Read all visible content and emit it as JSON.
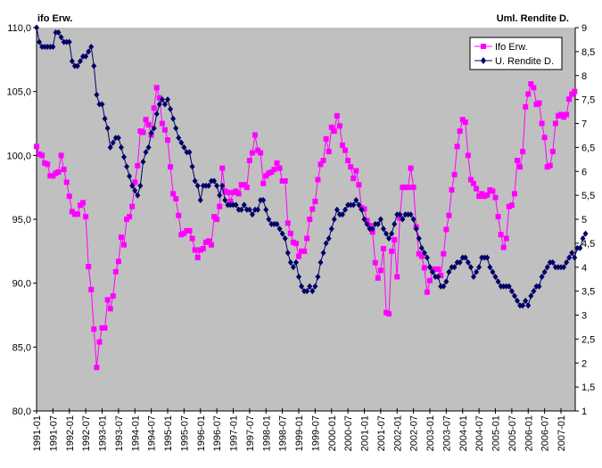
{
  "chart_data": {
    "type": "line",
    "left_axis_title": "ifo Erw.",
    "right_axis_title": "Uml. Rendite D.",
    "x_start": "1991-01",
    "x_frequency": "monthly",
    "x_tick_labels": [
      "1991-01",
      "1991-07",
      "1992-01",
      "1992-07",
      "1993-01",
      "1993-07",
      "1994-01",
      "1994-07",
      "1995-01",
      "1995-07",
      "1996-01",
      "1996-07",
      "1997-01",
      "1997-07",
      "1998-01",
      "1998-07",
      "1999-01",
      "1999-07",
      "2000-01",
      "2000-07",
      "2001-01",
      "2001-07",
      "2002-01",
      "2002-07",
      "2003-01",
      "2003-07",
      "2004-01",
      "2004-07",
      "2005-01",
      "2005-07",
      "2006-01",
      "2006-07",
      "2007-01"
    ],
    "y_left": {
      "range": [
        80,
        110
      ],
      "ticks": [
        "80,0",
        "85,0",
        "90,0",
        "95,0",
        "100,0",
        "105,0",
        "110,0"
      ]
    },
    "y_right": {
      "range": [
        1,
        9
      ],
      "ticks": [
        "1",
        "1,5",
        "2",
        "2,5",
        "3",
        "3,5",
        "4",
        "4,5",
        "5",
        "5,5",
        "6",
        "6,5",
        "7",
        "7,5",
        "8",
        "8,5",
        "9"
      ]
    },
    "plot_background": "#c0c0c0",
    "grid": false,
    "legend": "top-right",
    "series": [
      {
        "name": "Ifo Erw.",
        "axis": "left",
        "color": "#ff00ff",
        "marker": "square",
        "values": [
          100.7,
          100.1,
          100.0,
          99.4,
          99.3,
          98.4,
          98.4,
          98.6,
          98.7,
          100.0,
          98.9,
          97.9,
          96.8,
          95.6,
          95.4,
          95.4,
          96.1,
          96.3,
          95.2,
          91.3,
          89.5,
          86.4,
          83.4,
          85.4,
          86.5,
          86.5,
          88.7,
          88.0,
          89.0,
          90.9,
          91.7,
          93.6,
          93.0,
          95.0,
          95.2,
          96.0,
          97.9,
          99.2,
          101.9,
          101.8,
          102.8,
          102.4,
          101.6,
          103.7,
          105.3,
          104.5,
          102.5,
          102.0,
          101.2,
          99.1,
          97.0,
          96.6,
          95.3,
          93.8,
          93.9,
          94.1,
          94.1,
          93.5,
          92.6,
          92.0,
          92.6,
          92.7,
          93.2,
          93.3,
          93.0,
          95.2,
          95.0,
          96.0,
          99.0,
          97.2,
          97.1,
          96.4,
          97.1,
          97.2,
          97.0,
          97.7,
          97.7,
          97.5,
          99.6,
          100.2,
          101.6,
          100.4,
          100.2,
          97.8,
          98.4,
          98.6,
          98.7,
          98.9,
          99.4,
          99.0,
          98.0,
          98.0,
          94.7,
          93.9,
          93.2,
          93.1,
          92.1,
          92.5,
          92.5,
          93.5,
          95.0,
          95.8,
          96.4,
          98.1,
          99.3,
          99.6,
          101.3,
          100.3,
          102.2,
          101.9,
          103.1,
          102.3,
          100.8,
          100.4,
          99.6,
          99.1,
          98.2,
          98.8,
          97.7,
          95.9,
          95.8,
          94.9,
          94.5,
          94.0,
          91.6,
          90.4,
          91.0,
          92.7,
          87.7,
          87.6,
          92.5,
          93.4,
          90.5,
          95.1,
          97.5,
          97.5,
          97.5,
          99.0,
          97.5,
          94.4,
          92.3,
          92.1,
          91.2,
          89.3,
          90.2,
          91.0,
          91.1,
          91.1,
          90.6,
          92.3,
          94.2,
          95.3,
          97.3,
          98.5,
          100.7,
          101.9,
          102.8,
          102.6,
          100.0,
          98.1,
          97.8,
          97.4,
          96.8,
          97.0,
          96.8,
          96.9,
          97.3,
          97.2,
          96.7,
          95.2,
          93.8,
          92.8,
          93.5,
          96.0,
          96.1,
          97.0,
          99.6,
          99.1,
          100.3,
          103.8,
          104.8,
          105.6,
          105.3,
          104.0,
          104.1,
          102.5,
          101.4,
          99.1,
          99.2,
          100.3,
          102.5,
          103.1,
          103.2,
          103.0,
          103.2,
          104.4,
          104.8,
          105.0
        ]
      },
      {
        "name": "U. Rendite D.",
        "axis": "right",
        "color": "#000066",
        "marker": "diamond",
        "values": [
          9.0,
          8.7,
          8.6,
          8.6,
          8.6,
          8.6,
          8.6,
          8.9,
          8.9,
          8.8,
          8.7,
          8.7,
          8.7,
          8.3,
          8.2,
          8.2,
          8.3,
          8.4,
          8.4,
          8.5,
          8.6,
          8.2,
          7.6,
          7.4,
          7.4,
          7.1,
          6.9,
          6.5,
          6.6,
          6.7,
          6.7,
          6.5,
          6.3,
          6.1,
          5.9,
          5.7,
          5.6,
          5.5,
          5.7,
          6.2,
          6.4,
          6.5,
          6.8,
          6.9,
          7.2,
          7.4,
          7.5,
          7.4,
          7.5,
          7.3,
          7.1,
          6.9,
          6.7,
          6.6,
          6.5,
          6.4,
          6.4,
          6.1,
          5.8,
          5.7,
          5.4,
          5.7,
          5.7,
          5.7,
          5.8,
          5.8,
          5.7,
          5.5,
          5.7,
          5.4,
          5.3,
          5.3,
          5.3,
          5.3,
          5.2,
          5.2,
          5.3,
          5.2,
          5.2,
          5.1,
          5.2,
          5.2,
          5.4,
          5.4,
          5.2,
          5.0,
          4.9,
          4.9,
          4.9,
          4.8,
          4.7,
          4.6,
          4.3,
          4.1,
          4.0,
          4.1,
          3.8,
          3.6,
          3.5,
          3.5,
          3.6,
          3.5,
          3.6,
          3.8,
          4.1,
          4.3,
          4.5,
          4.6,
          4.8,
          5.0,
          5.2,
          5.1,
          5.1,
          5.2,
          5.3,
          5.3,
          5.3,
          5.4,
          5.3,
          5.2,
          5.0,
          4.9,
          4.8,
          4.8,
          4.9,
          4.9,
          5.0,
          4.8,
          4.7,
          4.6,
          4.7,
          4.9,
          5.1,
          5.1,
          5.0,
          5.1,
          5.1,
          5.1,
          5.0,
          4.8,
          4.6,
          4.4,
          4.3,
          4.2,
          4.0,
          3.9,
          3.8,
          3.8,
          3.6,
          3.6,
          3.7,
          3.9,
          4.0,
          4.0,
          4.1,
          4.1,
          4.2,
          4.2,
          4.1,
          4.0,
          3.8,
          3.9,
          4.0,
          4.2,
          4.2,
          4.2,
          4.0,
          3.9,
          3.8,
          3.7,
          3.6,
          3.6,
          3.6,
          3.6,
          3.5,
          3.4,
          3.3,
          3.2,
          3.2,
          3.3,
          3.2,
          3.4,
          3.5,
          3.6,
          3.6,
          3.8,
          3.9,
          4.0,
          4.1,
          4.1,
          4.0,
          4.0,
          4.0,
          4.0,
          4.1,
          4.2,
          4.3,
          4.2,
          4.4,
          4.4,
          4.6,
          4.7
        ]
      }
    ]
  }
}
